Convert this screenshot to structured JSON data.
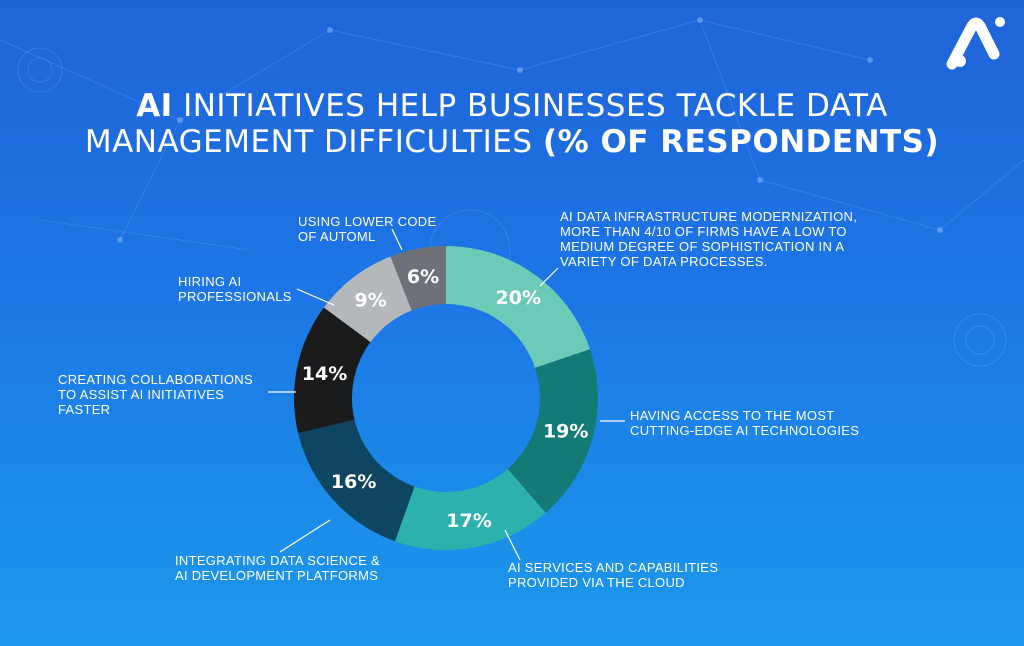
{
  "title": {
    "line1_bold": "AI",
    "line1_light": " INITIATIVES HELP BUSINESSES TACKLE DATA",
    "line2_light": "MANAGEMENT DIFFICULTIES ",
    "line2_bold": "(% OF RESPONDENTS)"
  },
  "chart_data": {
    "type": "pie",
    "subtype": "donut",
    "slices": [
      {
        "label_lines": [
          "AI DATA INFRASTRUCTURE MODERNIZATION,",
          "MORE THAN 4/10 OF FIRMS HAVE A LOW TO",
          "MEDIUM DEGREE OF SOPHISTICATION IN A",
          "VARIETY OF DATA PROCESSES."
        ],
        "value": 20,
        "display": "20%",
        "color": "#6bcbb6"
      },
      {
        "label_lines": [
          "HAVING ACCESS TO THE MOST",
          "CUTTING-EDGE AI TECHNOLOGIES"
        ],
        "value": 19,
        "display": "19%",
        "color": "#137a75"
      },
      {
        "label_lines": [
          "AI SERVICES AND CAPABILITIES",
          "PROVIDED VIA THE CLOUD"
        ],
        "value": 17,
        "display": "17%",
        "color": "#2db1ad"
      },
      {
        "label_lines": [
          "INTEGRATING DATA SCIENCE &",
          "AI DEVELOPMENT PLATFORMS"
        ],
        "value": 16,
        "display": "16%",
        "color": "#0e4560"
      },
      {
        "label_lines": [
          "CREATING COLLABORATIONS",
          "TO ASSIST AI INITIATIVES",
          "FASTER"
        ],
        "value": 14,
        "display": "14%",
        "color": "#1b1b1b"
      },
      {
        "label_lines": [
          "HIRING AI",
          "PROFESSIONALS"
        ],
        "value": 9,
        "display": "9%",
        "color": "#b5b8bb"
      },
      {
        "label_lines": [
          "USING LOWER CODE",
          "OF AUTOML"
        ],
        "value": 6,
        "display": "6%",
        "color": "#6e7278"
      }
    ]
  },
  "colors": {
    "background_top": "#1f63d8",
    "background_bottom": "#1c99ea",
    "leader_line": "#ffffff",
    "logo": "#ffffff"
  },
  "icons": {
    "logo": "brand-logo-icon"
  }
}
